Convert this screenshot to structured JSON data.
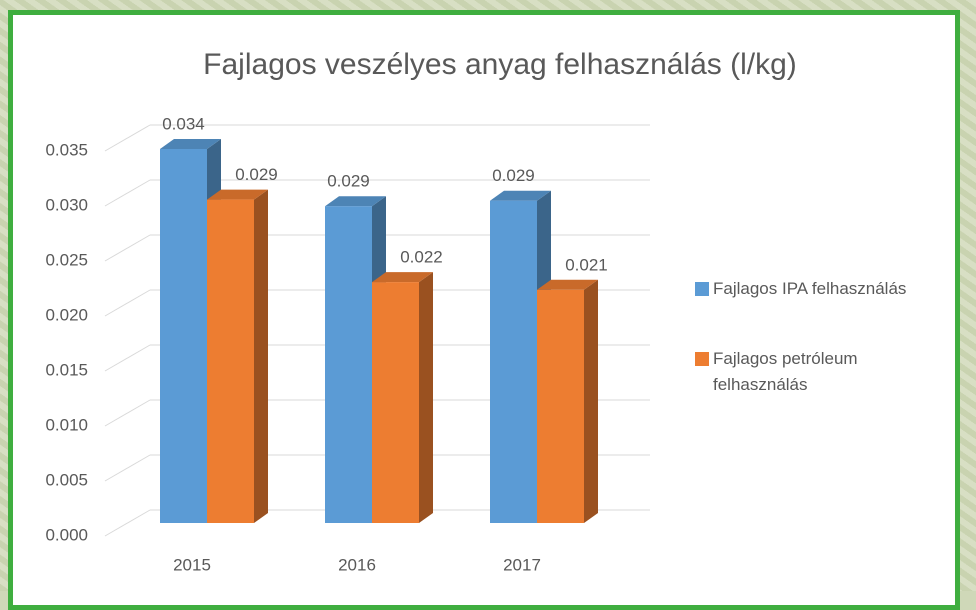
{
  "chart_data": {
    "type": "bar3d",
    "title": "Fajlagos veszélyes anyag felhasználás (l/kg)",
    "categories": [
      "2015",
      "2016",
      "2017"
    ],
    "series": [
      {
        "name": "Fajlagos IPA felhasználás",
        "color": "#5b9bd5",
        "values": [
          0.034,
          0.0288,
          0.0293
        ],
        "value_labels": [
          "0.034",
          "0.029",
          "0.029"
        ]
      },
      {
        "name": "Fajlagos petróleum felhasználás",
        "color": "#ed7d31",
        "values": [
          0.0294,
          0.0219,
          0.0212
        ],
        "value_labels": [
          "0.029",
          "0.022",
          "0.021"
        ]
      }
    ],
    "ylim": [
      0,
      0.035
    ],
    "yticks": [
      {
        "value": 0,
        "label": "0.000"
      },
      0.005,
      {
        "value": 0.01,
        "label": "0.010"
      },
      0.015,
      {
        "value": 0.02,
        "label": "0.020"
      },
      0.025,
      {
        "value": 0.03,
        "label": "0.030"
      },
      0.035
    ],
    "grid": true,
    "legend": "right"
  }
}
